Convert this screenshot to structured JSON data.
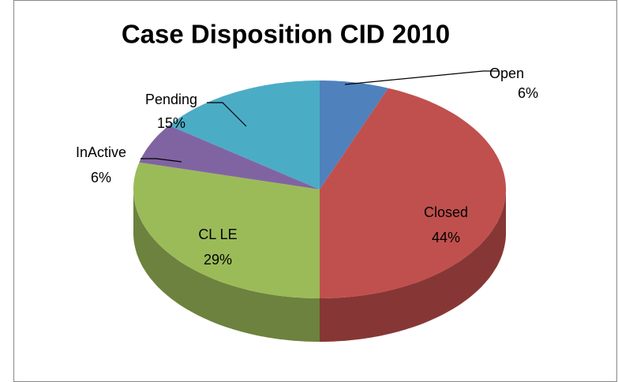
{
  "chart_data": {
    "type": "pie3d",
    "title": "Case Disposition CID 2010",
    "categories": [
      "Open",
      "Closed",
      "CL LE",
      "InActive",
      "Pending"
    ],
    "values": [
      6,
      44,
      29,
      6,
      15
    ],
    "value_labels": [
      "6%",
      "44%",
      "29%",
      "6%",
      "15%"
    ],
    "colors": [
      "#4f81bd",
      "#c0504d",
      "#9bbb59",
      "#8064a2",
      "#4bacc6"
    ]
  }
}
